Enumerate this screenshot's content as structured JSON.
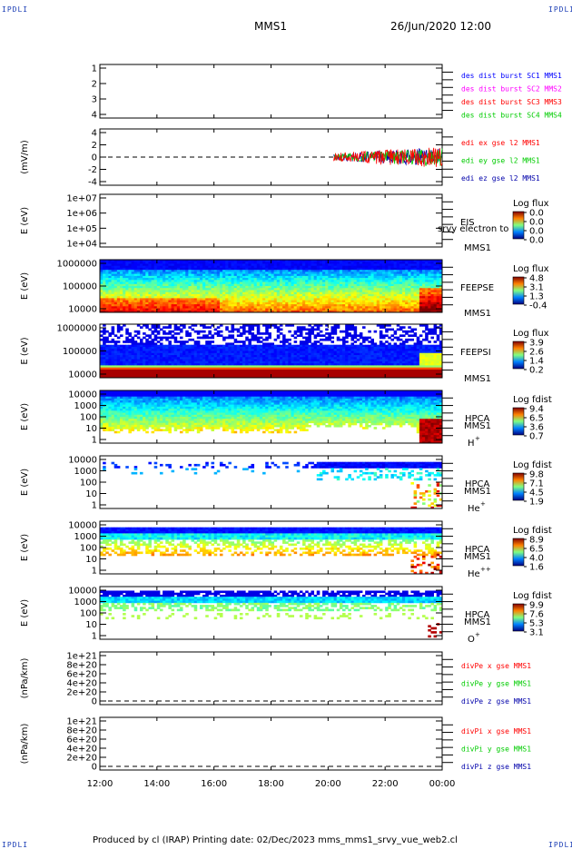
{
  "header": {
    "corner_tl": "IPDLI",
    "corner_tr": "IPDLI",
    "corner_bl": "IPDLI",
    "corner_br": "IPDLI",
    "spacecraft": "MMS1",
    "datetime": "26/Jun/2020 12:00"
  },
  "footer": {
    "text": "Produced by cl (IRAP)   Printing date: 02/Dec/2023   mms_mms1_srvy_vue_web2.cl"
  },
  "colors": {
    "blue": "#0000ff",
    "magenta": "#ff00ff",
    "red": "#ff0000",
    "green": "#00cc00",
    "darkblue": "#0000aa"
  },
  "chart_data": {
    "type": "multi-panel time series / spectrogram",
    "x_ticks": [
      "12:00",
      "14:00",
      "16:00",
      "18:00",
      "20:00",
      "22:00",
      "00:00"
    ],
    "x_range_hours": [
      12,
      24
    ],
    "panels": [
      {
        "id": "des-dist",
        "type": "line",
        "ylabel": "",
        "ytick_labels": [
          "1",
          "2",
          "3",
          "4"
        ],
        "legend": [
          {
            "label": "des dist burst SC1 MMS1",
            "color": "#0000ff"
          },
          {
            "label": "des dist burst SC2 MMS2",
            "color": "#ff00ff"
          },
          {
            "label": "des dist burst SC3 MMS3",
            "color": "#ff0000"
          },
          {
            "label": "des dist burst SC4 MMS4",
            "color": "#00cc00"
          }
        ]
      },
      {
        "id": "edi",
        "type": "line",
        "ylabel": "(mV/m)",
        "ytick_labels": [
          "4",
          "2",
          "0",
          "-2",
          "-4"
        ],
        "zero_line": true,
        "data_start_hour": 20.2,
        "legend": [
          {
            "label": "edi ex gse l2 MMS1",
            "color": "#ff0000"
          },
          {
            "label": "edi ey gse l2 MMS1",
            "color": "#00cc00"
          },
          {
            "label": "edi ez gse l2 MMS1",
            "color": "#0000aa"
          }
        ]
      },
      {
        "id": "eis",
        "type": "heatmap",
        "ylabel": "E (eV)",
        "ytick_labels": [
          "1e+07",
          "1e+06",
          "1e+05",
          "1e+04"
        ],
        "instrument": "EIS",
        "overlay_text": "srvy electron to",
        "spacecraft": "MMS1",
        "colorbar_title": "Log flux",
        "colorbar_ticks": [
          "0.0",
          "0.0",
          "0.0",
          "0.0"
        ]
      },
      {
        "id": "feepse",
        "type": "heatmap",
        "ylabel": "E (eV)",
        "ytick_labels": [
          "1000000",
          "100000",
          "10000"
        ],
        "instrument": "FEEPSE",
        "spacecraft": "MMS1",
        "colorbar_title": "Log flux",
        "colorbar_ticks": [
          "4.8",
          "3.1",
          "1.3",
          "-0.4"
        ]
      },
      {
        "id": "feepsi",
        "type": "heatmap",
        "ylabel": "E (eV)",
        "ytick_labels": [
          "1000000",
          "100000",
          "10000"
        ],
        "instrument": "FEEPSI",
        "spacecraft": "MMS1",
        "colorbar_title": "Log flux",
        "colorbar_ticks": [
          "3.9",
          "2.6",
          "1.4",
          "0.2"
        ]
      },
      {
        "id": "hpca-h",
        "type": "heatmap",
        "ylabel": "E (eV)",
        "ytick_labels": [
          "10000",
          "1000",
          "100",
          "10",
          "1"
        ],
        "instrument": "HPCA",
        "spacecraft": "MMS1",
        "species": "H",
        "species_sup": "+",
        "colorbar_title": "Log fdist",
        "colorbar_ticks": [
          "9.4",
          "6.5",
          "3.6",
          "0.7"
        ]
      },
      {
        "id": "hpca-he",
        "type": "heatmap",
        "ylabel": "E (eV)",
        "ytick_labels": [
          "10000",
          "1000",
          "100",
          "10",
          "1"
        ],
        "instrument": "HPCA",
        "spacecraft": "MMS1",
        "species": "He",
        "species_sup": "+",
        "colorbar_title": "Log fdist",
        "colorbar_ticks": [
          "9.8",
          "7.1",
          "4.5",
          "1.9"
        ]
      },
      {
        "id": "hpca-hepp",
        "type": "heatmap",
        "ylabel": "E (eV)",
        "ytick_labels": [
          "10000",
          "1000",
          "100",
          "10",
          "1"
        ],
        "instrument": "HPCA",
        "spacecraft": "MMS1",
        "species": "He",
        "species_sup": "++",
        "colorbar_title": "Log fdist",
        "colorbar_ticks": [
          "8.9",
          "6.5",
          "4.0",
          "1.6"
        ]
      },
      {
        "id": "hpca-o",
        "type": "heatmap",
        "ylabel": "E (eV)",
        "ytick_labels": [
          "10000",
          "1000",
          "100",
          "10",
          "1"
        ],
        "instrument": "HPCA",
        "spacecraft": "MMS1",
        "species": "O",
        "species_sup": "+",
        "colorbar_title": "Log fdist",
        "colorbar_ticks": [
          "9.9",
          "7.6",
          "5.3",
          "3.1"
        ]
      },
      {
        "id": "divpe",
        "type": "line",
        "ylabel": "(nPa/km)",
        "ytick_labels": [
          "1e+21",
          "8e+20",
          "6e+20",
          "4e+20",
          "2e+20",
          "0"
        ],
        "zero_line": true,
        "legend": [
          {
            "label": "divPe x gse MMS1",
            "color": "#ff0000"
          },
          {
            "label": "divPe y gse MMS1",
            "color": "#00cc00"
          },
          {
            "label": "divPe z gse MMS1",
            "color": "#0000aa"
          }
        ]
      },
      {
        "id": "divpi",
        "type": "line",
        "ylabel": "(nPa/km)",
        "ytick_labels": [
          "1e+21",
          "8e+20",
          "6e+20",
          "4e+20",
          "2e+20",
          "0"
        ],
        "zero_line": true,
        "legend": [
          {
            "label": "divPi x gse MMS1",
            "color": "#ff0000"
          },
          {
            "label": "divPi y gse MMS1",
            "color": "#00cc00"
          },
          {
            "label": "divPi z gse MMS1",
            "color": "#0000aa"
          }
        ]
      }
    ]
  }
}
